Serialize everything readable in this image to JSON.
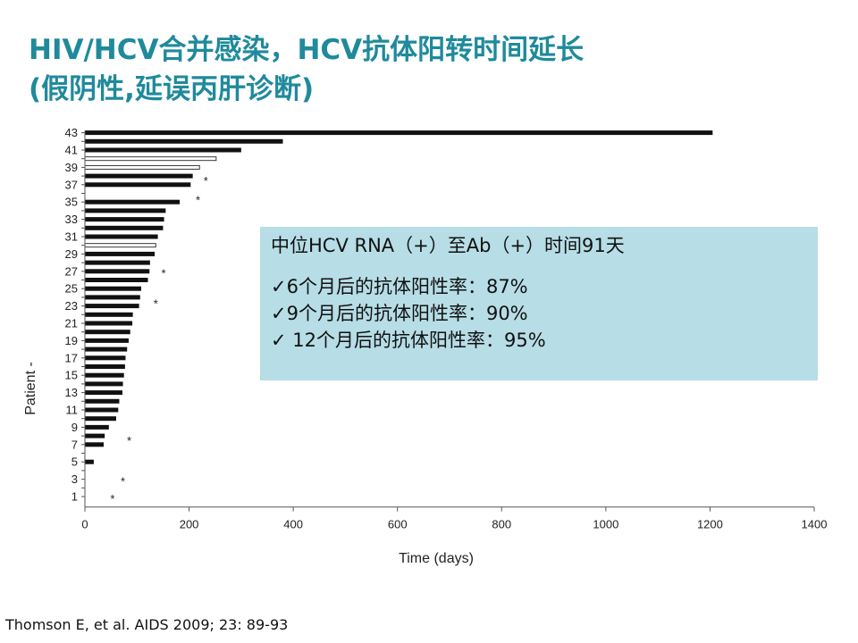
{
  "title": {
    "line1": "HIV/HCV合并感染，HCV抗体阳转时间延长",
    "line2": "(假阴性,延误丙肝诊断)"
  },
  "callout": {
    "median": "中位HCV RNA（+）至Ab（+）时间91天",
    "items": [
      "✓6个月后的抗体阳性率：87%",
      "✓9个月后的抗体阳性率：90%",
      "✓ 12个月后的抗体阳性率：95%"
    ]
  },
  "citation": "Thomson E, et al. AIDS 2009; 23: 89-93",
  "chart_data": {
    "type": "bar",
    "orientation": "horizontal",
    "xlabel": "Time (days)",
    "ylabel": "Patient -",
    "xlim": [
      0,
      1400
    ],
    "xticks": [
      0,
      200,
      400,
      600,
      800,
      1000,
      1200,
      1400
    ],
    "ylim": [
      0,
      43
    ],
    "yticks": [
      1,
      3,
      5,
      7,
      9,
      11,
      13,
      15,
      17,
      19,
      21,
      23,
      25,
      27,
      29,
      31,
      33,
      35,
      37,
      39,
      41,
      43
    ],
    "grid": false,
    "colors": {
      "filled": "#111111",
      "open": "#ffffff",
      "marker": "#888888"
    },
    "patients": [
      {
        "id": 43,
        "value": 1205,
        "fill": "filled"
      },
      {
        "id": 42,
        "value": 380,
        "fill": "filled"
      },
      {
        "id": 41,
        "value": 300,
        "fill": "filled"
      },
      {
        "id": 40,
        "value": 252,
        "fill": "open"
      },
      {
        "id": 39,
        "value": 220,
        "fill": "open"
      },
      {
        "id": 38,
        "value": 207,
        "fill": "filled"
      },
      {
        "id": 37,
        "value": 203,
        "fill": "filled"
      },
      {
        "id": 36,
        "value": null,
        "fill": "filled"
      },
      {
        "id": 35,
        "value": 182,
        "fill": "filled"
      },
      {
        "id": 34,
        "value": 155,
        "fill": "filled"
      },
      {
        "id": 33,
        "value": 152,
        "fill": "filled"
      },
      {
        "id": 32,
        "value": 150,
        "fill": "filled"
      },
      {
        "id": 31,
        "value": 140,
        "fill": "filled"
      },
      {
        "id": 30,
        "value": 136,
        "fill": "open"
      },
      {
        "id": 29,
        "value": 134,
        "fill": "filled"
      },
      {
        "id": 28,
        "value": 125,
        "fill": "filled"
      },
      {
        "id": 27,
        "value": 124,
        "fill": "filled"
      },
      {
        "id": 26,
        "value": 121,
        "fill": "filled"
      },
      {
        "id": 25,
        "value": 108,
        "fill": "filled"
      },
      {
        "id": 24,
        "value": 106,
        "fill": "filled"
      },
      {
        "id": 23,
        "value": 104,
        "fill": "filled"
      },
      {
        "id": 22,
        "value": 92,
        "fill": "filled"
      },
      {
        "id": 21,
        "value": 91,
        "fill": "filled"
      },
      {
        "id": 20,
        "value": 87,
        "fill": "filled"
      },
      {
        "id": 19,
        "value": 84,
        "fill": "filled"
      },
      {
        "id": 18,
        "value": 81,
        "fill": "filled"
      },
      {
        "id": 17,
        "value": 78,
        "fill": "filled"
      },
      {
        "id": 16,
        "value": 77,
        "fill": "filled"
      },
      {
        "id": 15,
        "value": 75,
        "fill": "filled"
      },
      {
        "id": 14,
        "value": 73,
        "fill": "filled"
      },
      {
        "id": 13,
        "value": 72,
        "fill": "filled"
      },
      {
        "id": 12,
        "value": 66,
        "fill": "filled"
      },
      {
        "id": 11,
        "value": 64,
        "fill": "filled"
      },
      {
        "id": 10,
        "value": 60,
        "fill": "filled"
      },
      {
        "id": 9,
        "value": 46,
        "fill": "filled"
      },
      {
        "id": 8,
        "value": 38,
        "fill": "filled"
      },
      {
        "id": 7,
        "value": 36,
        "fill": "filled"
      },
      {
        "id": 6,
        "value": null,
        "fill": "filled"
      },
      {
        "id": 5,
        "value": 17,
        "fill": "filled"
      },
      {
        "id": 4,
        "value": null,
        "fill": "filled"
      },
      {
        "id": 3,
        "value": null,
        "fill": "filled"
      },
      {
        "id": 2,
        "value": null,
        "fill": "filled"
      },
      {
        "id": 1,
        "value": null,
        "fill": "filled"
      }
    ],
    "markers": [
      {
        "patient": 37.5,
        "x": 232,
        "symbol": "*"
      },
      {
        "patient": 35.3,
        "x": 217,
        "symbol": "*"
      },
      {
        "patient": 26.8,
        "x": 151,
        "symbol": "*"
      },
      {
        "patient": 23.3,
        "x": 136,
        "symbol": "*"
      },
      {
        "patient": 7.5,
        "x": 85,
        "symbol": "*"
      },
      {
        "patient": 2.8,
        "x": 73,
        "symbol": "*"
      },
      {
        "patient": 0.8,
        "x": 53,
        "symbol": "*"
      }
    ]
  }
}
